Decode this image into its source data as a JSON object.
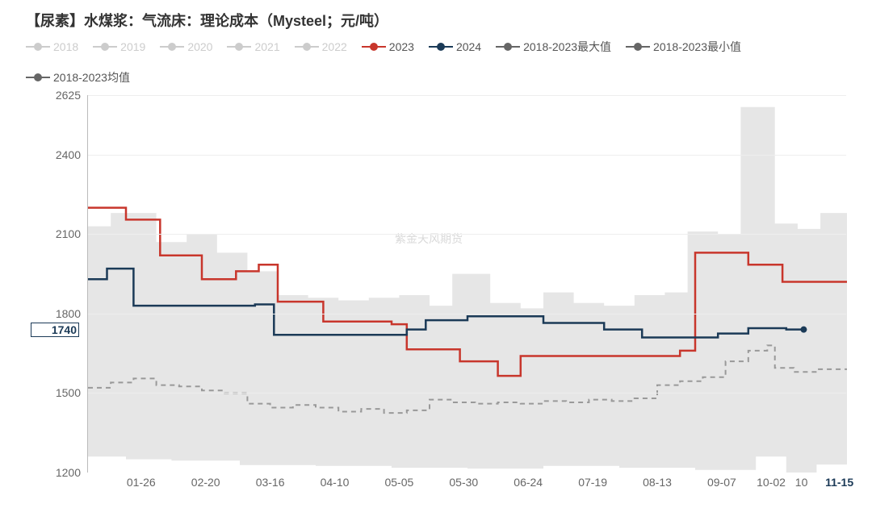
{
  "title": "【尿素】水煤浆：气流床：理论成本（Mysteel；元/吨）",
  "watermark": "紫金天风期货",
  "legend": [
    {
      "label": "2018",
      "color": "#cccccc",
      "muted": true
    },
    {
      "label": "2019",
      "color": "#cccccc",
      "muted": true
    },
    {
      "label": "2020",
      "color": "#cccccc",
      "muted": true
    },
    {
      "label": "2021",
      "color": "#cccccc",
      "muted": true
    },
    {
      "label": "2022",
      "color": "#cccccc",
      "muted": true
    },
    {
      "label": "2023",
      "color": "#c8362c",
      "muted": false
    },
    {
      "label": "2024",
      "color": "#1b3a57",
      "muted": false
    },
    {
      "label": "2018-2023最大值",
      "color": "#666666",
      "muted": false
    },
    {
      "label": "2018-2023最小值",
      "color": "#666666",
      "muted": false
    },
    {
      "label": "2018-2023均值",
      "color": "#666666",
      "muted": false
    }
  ],
  "chart": {
    "type": "line",
    "ylim": [
      1200,
      2625
    ],
    "yticks": [
      1200,
      1500,
      1800,
      2100,
      2400,
      2625
    ],
    "y_highlight": 1740,
    "xticks": [
      {
        "pos": 0.07,
        "label": "01-26"
      },
      {
        "pos": 0.155,
        "label": "02-20"
      },
      {
        "pos": 0.24,
        "label": "03-16"
      },
      {
        "pos": 0.325,
        "label": "04-10"
      },
      {
        "pos": 0.41,
        "label": "05-05"
      },
      {
        "pos": 0.495,
        "label": "05-30"
      },
      {
        "pos": 0.58,
        "label": "06-24"
      },
      {
        "pos": 0.665,
        "label": "07-19"
      },
      {
        "pos": 0.75,
        "label": "08-13"
      },
      {
        "pos": 0.835,
        "label": "09-07"
      },
      {
        "pos": 0.9,
        "label": "10-02"
      },
      {
        "pos": 0.94,
        "label": "10"
      },
      {
        "pos": 0.99,
        "label": "11-15",
        "highlight": true
      }
    ],
    "background_color": "#ffffff",
    "grid_color": "#eeeeee",
    "max_fill_color": "#e6e6e6",
    "series": {
      "max_2018_2023": {
        "color": "#e6e6e6",
        "type": "area",
        "data": [
          [
            0.0,
            2130
          ],
          [
            0.03,
            2130
          ],
          [
            0.03,
            2180
          ],
          [
            0.09,
            2180
          ],
          [
            0.09,
            2070
          ],
          [
            0.13,
            2070
          ],
          [
            0.13,
            2100
          ],
          [
            0.17,
            2100
          ],
          [
            0.17,
            2030
          ],
          [
            0.21,
            2030
          ],
          [
            0.21,
            1960
          ],
          [
            0.25,
            1960
          ],
          [
            0.25,
            1870
          ],
          [
            0.29,
            1870
          ],
          [
            0.29,
            1860
          ],
          [
            0.33,
            1860
          ],
          [
            0.33,
            1850
          ],
          [
            0.37,
            1850
          ],
          [
            0.37,
            1860
          ],
          [
            0.41,
            1860
          ],
          [
            0.41,
            1870
          ],
          [
            0.45,
            1870
          ],
          [
            0.45,
            1830
          ],
          [
            0.48,
            1830
          ],
          [
            0.48,
            1950
          ],
          [
            0.53,
            1950
          ],
          [
            0.53,
            1840
          ],
          [
            0.57,
            1840
          ],
          [
            0.57,
            1820
          ],
          [
            0.6,
            1820
          ],
          [
            0.6,
            1880
          ],
          [
            0.64,
            1880
          ],
          [
            0.64,
            1840
          ],
          [
            0.68,
            1840
          ],
          [
            0.68,
            1830
          ],
          [
            0.72,
            1830
          ],
          [
            0.72,
            1870
          ],
          [
            0.76,
            1870
          ],
          [
            0.76,
            1880
          ],
          [
            0.79,
            1880
          ],
          [
            0.79,
            2110
          ],
          [
            0.83,
            2110
          ],
          [
            0.83,
            2100
          ],
          [
            0.86,
            2100
          ],
          [
            0.86,
            2580
          ],
          [
            0.905,
            2580
          ],
          [
            0.905,
            2140
          ],
          [
            0.935,
            2140
          ],
          [
            0.935,
            2120
          ],
          [
            0.965,
            2120
          ],
          [
            0.965,
            2180
          ],
          [
            1.0,
            2180
          ]
        ]
      },
      "min_white": {
        "type": "area_white",
        "data": [
          [
            0.0,
            1260
          ],
          [
            0.05,
            1260
          ],
          [
            0.05,
            1250
          ],
          [
            0.11,
            1250
          ],
          [
            0.11,
            1245
          ],
          [
            0.2,
            1245
          ],
          [
            0.2,
            1228
          ],
          [
            0.3,
            1228
          ],
          [
            0.3,
            1225
          ],
          [
            0.4,
            1225
          ],
          [
            0.4,
            1218
          ],
          [
            0.5,
            1218
          ],
          [
            0.5,
            1215
          ],
          [
            0.6,
            1215
          ],
          [
            0.6,
            1225
          ],
          [
            0.7,
            1225
          ],
          [
            0.7,
            1218
          ],
          [
            0.8,
            1218
          ],
          [
            0.8,
            1210
          ],
          [
            0.88,
            1210
          ],
          [
            0.88,
            1260
          ],
          [
            0.92,
            1260
          ],
          [
            0.92,
            1200
          ],
          [
            0.96,
            1200
          ],
          [
            0.96,
            1230
          ],
          [
            1.0,
            1230
          ]
        ]
      },
      "mean_2018_2023": {
        "color": "#999999",
        "width": 2,
        "dash": "6,5",
        "data": [
          [
            0.0,
            1520
          ],
          [
            0.03,
            1520
          ],
          [
            0.03,
            1540
          ],
          [
            0.06,
            1540
          ],
          [
            0.06,
            1555
          ],
          [
            0.09,
            1555
          ],
          [
            0.09,
            1530
          ],
          [
            0.12,
            1530
          ],
          [
            0.12,
            1525
          ],
          [
            0.15,
            1525
          ],
          [
            0.15,
            1510
          ],
          [
            0.18,
            1510
          ],
          [
            0.18,
            1500
          ],
          [
            0.21,
            1500
          ],
          [
            0.21,
            1460
          ],
          [
            0.24,
            1460
          ],
          [
            0.24,
            1445
          ],
          [
            0.27,
            1445
          ],
          [
            0.27,
            1455
          ],
          [
            0.3,
            1455
          ],
          [
            0.3,
            1445
          ],
          [
            0.33,
            1445
          ],
          [
            0.33,
            1430
          ],
          [
            0.36,
            1430
          ],
          [
            0.36,
            1440
          ],
          [
            0.39,
            1440
          ],
          [
            0.39,
            1425
          ],
          [
            0.42,
            1425
          ],
          [
            0.42,
            1435
          ],
          [
            0.45,
            1435
          ],
          [
            0.45,
            1475
          ],
          [
            0.48,
            1475
          ],
          [
            0.48,
            1465
          ],
          [
            0.51,
            1465
          ],
          [
            0.51,
            1460
          ],
          [
            0.54,
            1460
          ],
          [
            0.54,
            1465
          ],
          [
            0.57,
            1465
          ],
          [
            0.57,
            1460
          ],
          [
            0.6,
            1460
          ],
          [
            0.6,
            1470
          ],
          [
            0.63,
            1470
          ],
          [
            0.63,
            1465
          ],
          [
            0.66,
            1465
          ],
          [
            0.66,
            1475
          ],
          [
            0.69,
            1475
          ],
          [
            0.69,
            1470
          ],
          [
            0.72,
            1470
          ],
          [
            0.72,
            1480
          ],
          [
            0.75,
            1480
          ],
          [
            0.75,
            1530
          ],
          [
            0.78,
            1530
          ],
          [
            0.78,
            1545
          ],
          [
            0.81,
            1545
          ],
          [
            0.81,
            1560
          ],
          [
            0.84,
            1560
          ],
          [
            0.84,
            1620
          ],
          [
            0.87,
            1620
          ],
          [
            0.87,
            1660
          ],
          [
            0.895,
            1660
          ],
          [
            0.895,
            1680
          ],
          [
            0.905,
            1680
          ],
          [
            0.905,
            1595
          ],
          [
            0.93,
            1595
          ],
          [
            0.93,
            1580
          ],
          [
            0.96,
            1580
          ],
          [
            0.96,
            1590
          ],
          [
            1.0,
            1590
          ]
        ]
      },
      "y2023": {
        "color": "#c8362c",
        "width": 2.5,
        "data": [
          [
            0.0,
            2200
          ],
          [
            0.05,
            2200
          ],
          [
            0.05,
            2155
          ],
          [
            0.095,
            2155
          ],
          [
            0.095,
            2020
          ],
          [
            0.15,
            2020
          ],
          [
            0.15,
            1930
          ],
          [
            0.195,
            1930
          ],
          [
            0.195,
            1960
          ],
          [
            0.225,
            1960
          ],
          [
            0.225,
            1985
          ],
          [
            0.25,
            1985
          ],
          [
            0.25,
            1845
          ],
          [
            0.31,
            1845
          ],
          [
            0.31,
            1770
          ],
          [
            0.4,
            1770
          ],
          [
            0.4,
            1760
          ],
          [
            0.42,
            1760
          ],
          [
            0.42,
            1665
          ],
          [
            0.49,
            1665
          ],
          [
            0.49,
            1620
          ],
          [
            0.54,
            1620
          ],
          [
            0.54,
            1565
          ],
          [
            0.57,
            1565
          ],
          [
            0.57,
            1640
          ],
          [
            0.61,
            1640
          ],
          [
            0.61,
            1640
          ],
          [
            0.78,
            1640
          ],
          [
            0.78,
            1660
          ],
          [
            0.8,
            1660
          ],
          [
            0.8,
            2030
          ],
          [
            0.87,
            2030
          ],
          [
            0.87,
            1985
          ],
          [
            0.915,
            1985
          ],
          [
            0.915,
            1920
          ],
          [
            1.0,
            1920
          ]
        ]
      },
      "y2024": {
        "color": "#1b3a57",
        "width": 2.5,
        "data": [
          [
            0.0,
            1930
          ],
          [
            0.025,
            1930
          ],
          [
            0.025,
            1970
          ],
          [
            0.06,
            1970
          ],
          [
            0.06,
            1830
          ],
          [
            0.22,
            1830
          ],
          [
            0.22,
            1835
          ],
          [
            0.245,
            1835
          ],
          [
            0.245,
            1720
          ],
          [
            0.42,
            1720
          ],
          [
            0.42,
            1740
          ],
          [
            0.445,
            1740
          ],
          [
            0.445,
            1775
          ],
          [
            0.5,
            1775
          ],
          [
            0.5,
            1790
          ],
          [
            0.6,
            1790
          ],
          [
            0.6,
            1765
          ],
          [
            0.68,
            1765
          ],
          [
            0.68,
            1740
          ],
          [
            0.73,
            1740
          ],
          [
            0.73,
            1710
          ],
          [
            0.83,
            1710
          ],
          [
            0.83,
            1725
          ],
          [
            0.87,
            1725
          ],
          [
            0.87,
            1745
          ],
          [
            0.92,
            1745
          ],
          [
            0.92,
            1740
          ],
          [
            0.943,
            1740
          ]
        ]
      }
    }
  }
}
